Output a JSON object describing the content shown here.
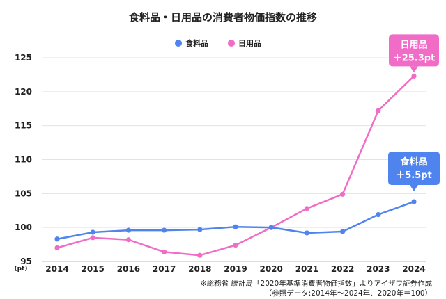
{
  "chart_data": {
    "type": "line",
    "title": "食料品・日用品の消費者物価指数の推移",
    "categories": [
      "2014",
      "2015",
      "2016",
      "2017",
      "2018",
      "2019",
      "2020",
      "2021",
      "2022",
      "2023",
      "2024"
    ],
    "series": [
      {
        "name": "食料品",
        "color": "#4f83ee",
        "values": [
          98.3,
          99.3,
          99.6,
          99.6,
          99.7,
          100.1,
          100.0,
          99.2,
          99.4,
          101.9,
          103.8
        ]
      },
      {
        "name": "日用品",
        "color": "#f06cc6",
        "values": [
          97.0,
          98.5,
          98.2,
          96.4,
          95.9,
          97.4,
          100.0,
          102.8,
          104.9,
          117.2,
          122.3
        ]
      }
    ],
    "ylim": [
      95,
      125
    ],
    "yticks": [
      "95",
      "100",
      "105",
      "110",
      "115",
      "120",
      "125"
    ],
    "y_unit": "(pt)",
    "grid": true,
    "legend_position": "top-center",
    "annotations": [
      {
        "series": "日用品",
        "line1": "日用品",
        "line2": "＋25.3pt"
      },
      {
        "series": "食料品",
        "line1": "食料品",
        "line2": "＋5.5pt"
      }
    ]
  },
  "source": {
    "line1": "※総務省 統計局「2020年基準消費者物価指数」よりアイザワ証券作成",
    "line2": "（参照データ:2014年〜2024年、2020年＝100）"
  }
}
